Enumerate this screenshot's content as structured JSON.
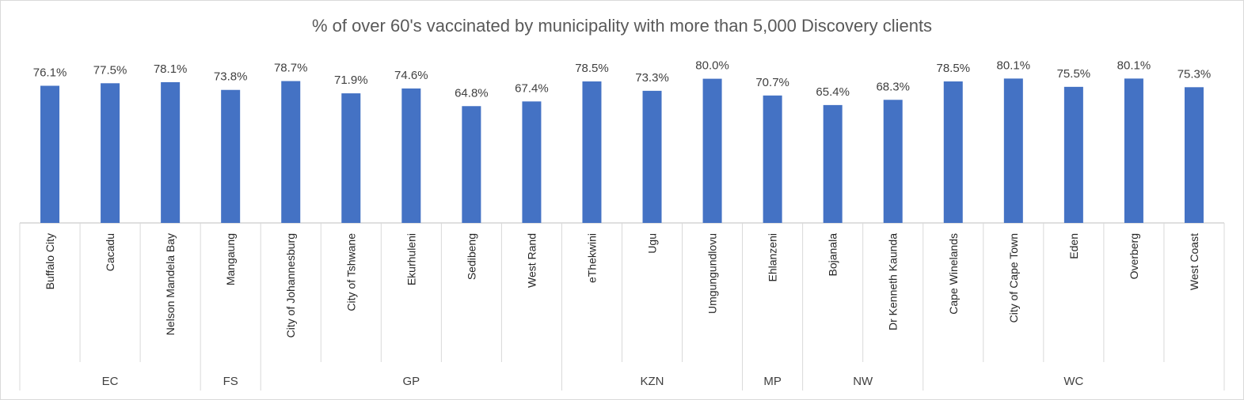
{
  "chart_data": {
    "type": "bar",
    "title": "% of over 60's vaccinated by municipality with more than 5,000 Discovery clients",
    "xlabel": "",
    "ylabel": "",
    "ylim": [
      0,
      90
    ],
    "grid": false,
    "legend": "none",
    "bar_color": "#4472c4",
    "categories": [
      "Buffalo City",
      "Cacadu",
      "Nelson Mandela Bay",
      "Mangaung",
      "City of Johannesburg",
      "City of Tshwane",
      "Ekurhuleni",
      "Sedibeng",
      "West Rand",
      "eThekwini",
      "Ugu",
      "Umgungundlovu",
      "Ehlanzeni",
      "Bojanala",
      "Dr Kenneth Kaunda",
      "Cape Winelands",
      "City of Cape Town",
      "Eden",
      "Overberg",
      "West Coast"
    ],
    "values": [
      76.1,
      77.5,
      78.1,
      73.8,
      78.7,
      71.9,
      74.6,
      64.8,
      67.4,
      78.5,
      73.3,
      80.0,
      70.7,
      65.4,
      68.3,
      78.5,
      80.1,
      75.5,
      80.1,
      75.3
    ],
    "data_labels": [
      "76.1%",
      "77.5%",
      "78.1%",
      "73.8%",
      "78.7%",
      "71.9%",
      "74.6%",
      "64.8%",
      "67.4%",
      "78.5%",
      "73.3%",
      "80.0%",
      "70.7%",
      "65.4%",
      "68.3%",
      "78.5%",
      "80.1%",
      "75.5%",
      "80.1%",
      "75.3%"
    ],
    "groups": [
      {
        "name": "EC",
        "count": 3
      },
      {
        "name": "FS",
        "count": 1
      },
      {
        "name": "GP",
        "count": 5
      },
      {
        "name": "KZN",
        "count": 3
      },
      {
        "name": "MP",
        "count": 1
      },
      {
        "name": "NW",
        "count": 2
      },
      {
        "name": "WC",
        "count": 5
      }
    ]
  }
}
